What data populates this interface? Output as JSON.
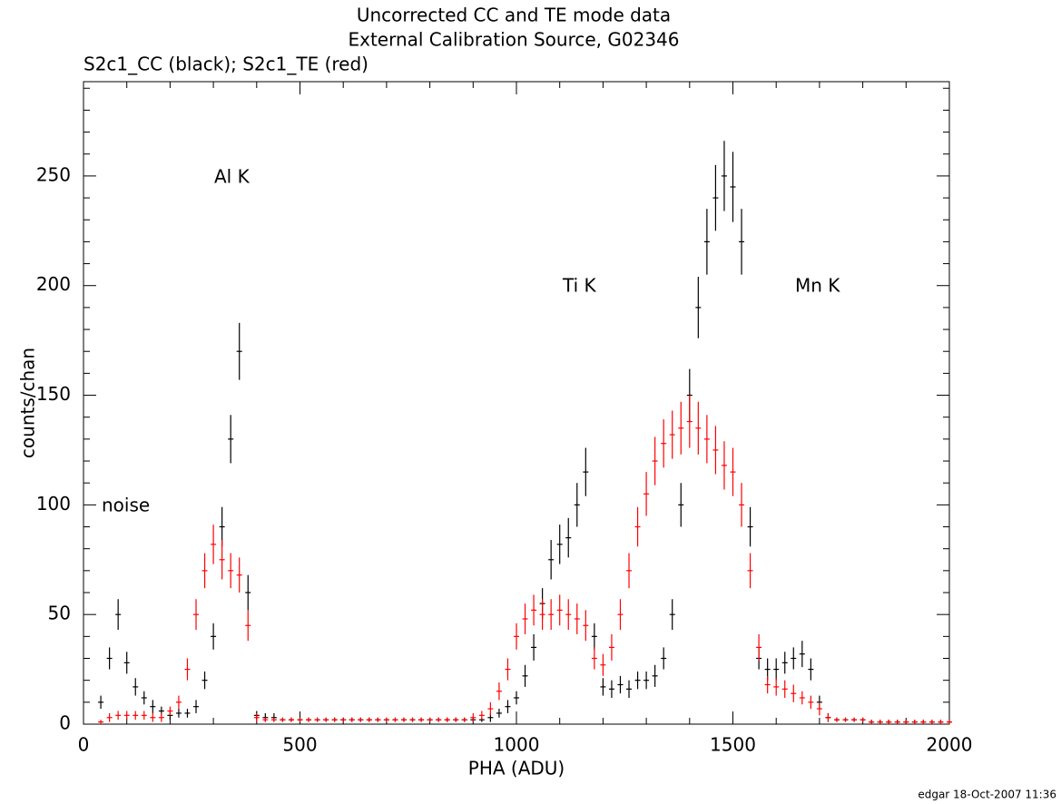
{
  "chart_data": {
    "type": "errorbar",
    "title": "Uncorrected CC and TE mode data",
    "subtitle": "External Calibration Source, G02346",
    "legend_text": "S2c1_CC (black); S2c1_TE (red)",
    "xlabel": "PHA (ADU)",
    "ylabel": "counts/chan",
    "annotations": [
      "noise",
      "Al K",
      "Ti K",
      "Mn K"
    ],
    "footer": "edgar 18-Oct-2007 11:36",
    "xlim": [
      0,
      2000
    ],
    "xticks": [
      0,
      500,
      1000,
      1500,
      2000
    ],
    "ylim": [
      0,
      293
    ],
    "yticks": [
      0,
      50,
      100,
      150,
      200,
      250
    ],
    "x": [
      40,
      60,
      80,
      100,
      120,
      140,
      160,
      180,
      200,
      220,
      240,
      260,
      280,
      300,
      320,
      340,
      360,
      380,
      400,
      420,
      440,
      460,
      480,
      500,
      520,
      540,
      560,
      580,
      600,
      620,
      640,
      660,
      680,
      700,
      720,
      740,
      760,
      780,
      800,
      820,
      840,
      860,
      880,
      900,
      920,
      940,
      960,
      980,
      1000,
      1020,
      1040,
      1060,
      1080,
      1100,
      1120,
      1140,
      1160,
      1180,
      1200,
      1220,
      1240,
      1260,
      1280,
      1300,
      1320,
      1340,
      1360,
      1380,
      1400,
      1420,
      1440,
      1460,
      1480,
      1500,
      1520,
      1540,
      1560,
      1580,
      1600,
      1620,
      1640,
      1660,
      1680,
      1700,
      1720,
      1740,
      1760,
      1780,
      1800,
      1820,
      1840,
      1860,
      1880,
      1900,
      1920,
      1940,
      1960,
      1980,
      2000
    ],
    "series": [
      {
        "name": "S2c1_CC",
        "color": "#000000",
        "values": [
          10,
          30,
          50,
          28,
          17,
          12,
          8,
          6,
          4,
          5,
          5,
          8,
          20,
          40,
          90,
          130,
          170,
          60,
          4,
          3,
          3,
          2,
          2,
          2,
          2,
          2,
          2,
          2,
          2,
          2,
          2,
          2,
          2,
          2,
          2,
          2,
          2,
          2,
          2,
          2,
          2,
          2,
          2,
          2,
          2,
          3,
          5,
          8,
          12,
          22,
          35,
          55,
          75,
          82,
          85,
          100,
          115,
          40,
          17,
          16,
          18,
          16,
          20,
          20,
          22,
          30,
          50,
          100,
          150,
          190,
          220,
          240,
          250,
          245,
          220,
          90,
          30,
          25,
          25,
          28,
          30,
          32,
          25,
          10,
          3,
          2,
          2,
          2,
          2,
          1,
          1,
          1,
          1,
          1,
          1,
          1,
          1,
          1,
          1
        ],
        "errors": [
          3,
          5,
          7,
          5,
          4,
          3,
          3,
          2,
          2,
          2,
          2,
          3,
          4,
          6,
          9,
          11,
          13,
          8,
          2,
          2,
          2,
          1,
          1,
          1,
          1,
          1,
          1,
          1,
          1,
          1,
          1,
          1,
          1,
          1,
          1,
          1,
          1,
          1,
          1,
          1,
          1,
          1,
          1,
          1,
          1,
          2,
          2,
          3,
          3,
          5,
          6,
          7,
          9,
          9,
          9,
          10,
          11,
          6,
          4,
          4,
          4,
          4,
          4,
          4,
          5,
          5,
          7,
          10,
          12,
          14,
          15,
          15,
          16,
          16,
          15,
          9,
          5,
          5,
          5,
          5,
          5,
          6,
          5,
          3,
          2,
          1,
          1,
          1,
          1,
          1,
          1,
          1,
          1,
          1,
          1,
          1,
          1,
          1,
          1
        ]
      },
      {
        "name": "S2c1_TE",
        "color": "#ff0000",
        "values": [
          1,
          3,
          4,
          4,
          4,
          4,
          3,
          3,
          6,
          10,
          25,
          50,
          70,
          82,
          75,
          70,
          68,
          45,
          3,
          2,
          2,
          2,
          2,
          2,
          2,
          2,
          2,
          2,
          2,
          2,
          2,
          2,
          2,
          2,
          2,
          2,
          2,
          2,
          2,
          2,
          2,
          2,
          2,
          3,
          4,
          7,
          15,
          25,
          40,
          48,
          52,
          50,
          50,
          52,
          50,
          48,
          45,
          30,
          27,
          35,
          50,
          70,
          90,
          105,
          120,
          128,
          132,
          135,
          138,
          135,
          130,
          125,
          118,
          115,
          100,
          70,
          35,
          18,
          17,
          16,
          14,
          12,
          10,
          7,
          3,
          2,
          2,
          2,
          2,
          1,
          1,
          1,
          1,
          1,
          1,
          1,
          1,
          1,
          1
        ],
        "errors": [
          1,
          2,
          2,
          2,
          2,
          2,
          2,
          2,
          2,
          3,
          5,
          7,
          8,
          9,
          9,
          8,
          8,
          7,
          2,
          1,
          1,
          1,
          1,
          1,
          1,
          1,
          1,
          1,
          1,
          1,
          1,
          1,
          1,
          1,
          1,
          1,
          1,
          1,
          1,
          1,
          1,
          1,
          1,
          2,
          2,
          3,
          4,
          5,
          6,
          7,
          7,
          7,
          7,
          7,
          7,
          7,
          7,
          5,
          5,
          6,
          7,
          8,
          9,
          10,
          11,
          11,
          11,
          12,
          12,
          12,
          11,
          11,
          11,
          11,
          10,
          8,
          6,
          4,
          4,
          4,
          4,
          3,
          3,
          3,
          2,
          1,
          1,
          1,
          1,
          1,
          1,
          1,
          1,
          1,
          1,
          1,
          1,
          1,
          1
        ]
      }
    ]
  }
}
